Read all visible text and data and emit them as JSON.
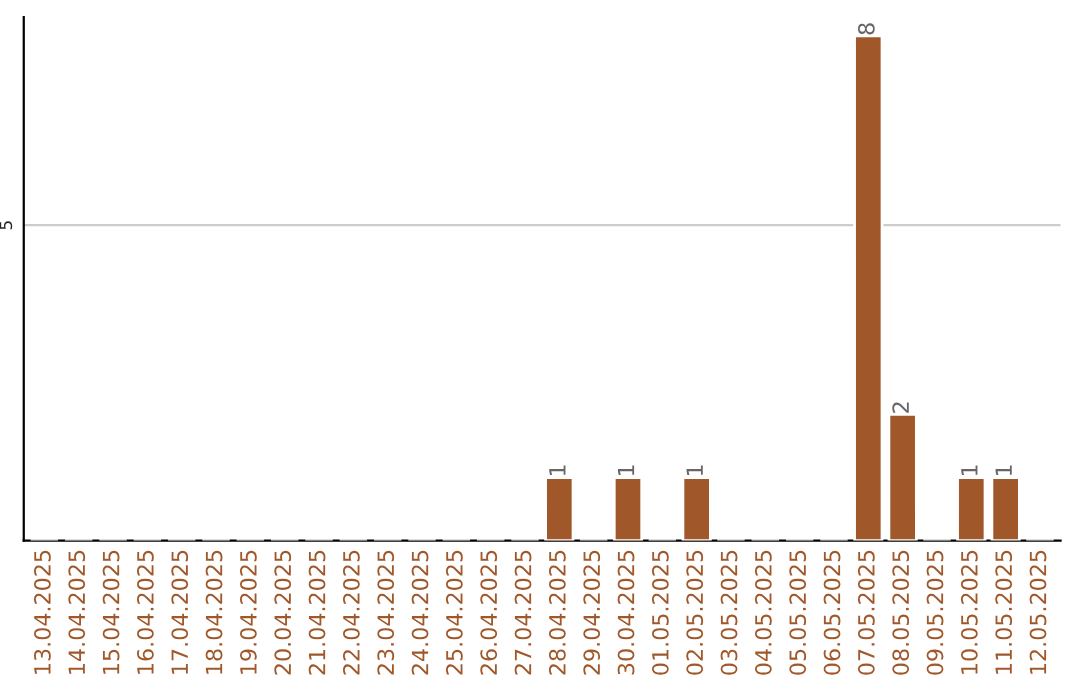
{
  "chart_data": {
    "type": "bar",
    "categories": [
      "13.04.2025",
      "14.04.2025",
      "15.04.2025",
      "16.04.2025",
      "17.04.2025",
      "18.04.2025",
      "19.04.2025",
      "20.04.2025",
      "21.04.2025",
      "22.04.2025",
      "23.04.2025",
      "24.04.2025",
      "25.04.2025",
      "26.04.2025",
      "27.04.2025",
      "28.04.2025",
      "29.04.2025",
      "30.04.2025",
      "01.05.2025",
      "02.05.2025",
      "03.05.2025",
      "04.05.2025",
      "05.05.2025",
      "06.05.2025",
      "07.05.2025",
      "08.05.2025",
      "09.05.2025",
      "10.05.2025",
      "11.05.2025",
      "12.05.2025"
    ],
    "values": [
      null,
      null,
      null,
      null,
      null,
      null,
      null,
      null,
      null,
      null,
      null,
      null,
      null,
      null,
      null,
      1,
      null,
      1,
      null,
      1,
      null,
      null,
      null,
      null,
      8,
      2,
      null,
      1,
      1,
      null
    ],
    "value_labels": [
      null,
      null,
      null,
      null,
      null,
      null,
      null,
      null,
      null,
      null,
      null,
      null,
      null,
      null,
      null,
      "1",
      null,
      "1",
      null,
      "1",
      null,
      null,
      null,
      null,
      "8",
      "2",
      null,
      "1",
      "1",
      null
    ],
    "color": "#a0582a",
    "ylim": [
      0,
      8.3
    ],
    "yticks": [
      5
    ],
    "grid": "y"
  }
}
